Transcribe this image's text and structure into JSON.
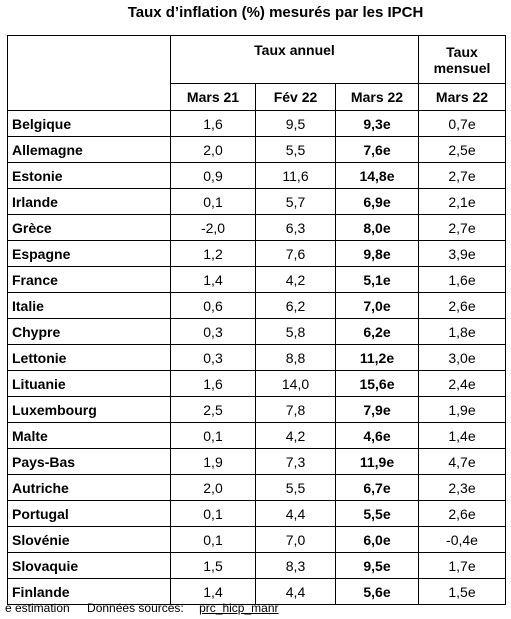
{
  "header": {
    "title": "Taux d’inflation (%) mesurés par les IPCH"
  },
  "table": {
    "group_headers": [
      "Taux annuel",
      "Taux mensuel"
    ],
    "columns": [
      "Mars 21",
      "Fév 22",
      "Mars 22",
      "Mars 22"
    ],
    "rows": [
      [
        "Belgique",
        "1,6",
        "9,5",
        "9,3e",
        "0,7e"
      ],
      [
        "Allemagne",
        "2,0",
        "5,5",
        "7,6e",
        "2,5e"
      ],
      [
        "Estonie",
        "0,9",
        "11,6",
        "14,8e",
        "2,7e"
      ],
      [
        "Irlande",
        "0,1",
        "5,7",
        "6,9e",
        "2,1e"
      ],
      [
        "Grèce",
        "-2,0",
        "6,3",
        "8,0e",
        "2,7e"
      ],
      [
        "Espagne",
        "1,2",
        "7,6",
        "9,8e",
        "3,9e"
      ],
      [
        "France",
        "1,4",
        "4,2",
        "5,1e",
        "1,6e"
      ],
      [
        "Italie",
        "0,6",
        "6,2",
        "7,0e",
        "2,6e"
      ],
      [
        "Chypre",
        "0,3",
        "5,8",
        "6,2e",
        "1,8e"
      ],
      [
        "Lettonie",
        "0,3",
        "8,8",
        "11,2e",
        "3,0e"
      ],
      [
        "Lituanie",
        "1,6",
        "14,0",
        "15,6e",
        "2,4e"
      ],
      [
        "Luxembourg",
        "2,5",
        "7,8",
        "7,9e",
        "1,9e"
      ],
      [
        "Malte",
        "0,1",
        "4,2",
        "4,6e",
        "1,4e"
      ],
      [
        "Pays-Bas",
        "1,9",
        "7,3",
        "11,9e",
        "4,7e"
      ],
      [
        "Autriche",
        "2,0",
        "5,5",
        "6,7e",
        "2,3e"
      ],
      [
        "Portugal",
        "0,1",
        "4,4",
        "5,5e",
        "2,6e"
      ],
      [
        "Slovénie",
        "0,1",
        "7,0",
        "6,0e",
        "-0,4e"
      ],
      [
        "Slovaquie",
        "1,5",
        "8,3",
        "9,5e",
        "1,7e"
      ],
      [
        "Finlande",
        "1,4",
        "4,4",
        "5,6e",
        "1,5e"
      ]
    ]
  },
  "footer": {
    "note": "e estimation",
    "source_label": "Données sources:",
    "source_link": "prc_hicp_manr"
  }
}
